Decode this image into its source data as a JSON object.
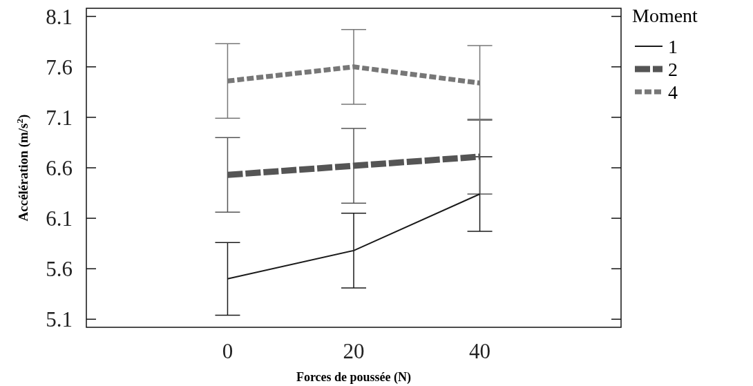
{
  "chart_data": {
    "type": "line",
    "xlabel": "Forces de poussée (N)",
    "ylabel": "Accélération (m/s$^{2}$)",
    "legend_title": "Moment",
    "legend": "top right",
    "grid": false,
    "marker": "none",
    "x": [
      0,
      20,
      40
    ],
    "xlim": [
      -22.4,
      62.4
    ],
    "xticks": [
      0,
      20,
      40
    ],
    "ylim": [
      5.02,
      8.18
    ],
    "yticks": [
      5.1,
      5.6,
      6.1,
      6.6,
      7.1,
      7.6,
      8.1
    ],
    "series": [
      {
        "name": "1",
        "color": "#1a1a1a",
        "line_style": "solid",
        "values": [
          5.5,
          5.78,
          6.34
        ],
        "errors": [
          0.36,
          0.37,
          0.37
        ]
      },
      {
        "name": "2",
        "color": "#555555",
        "line_style": "dashed",
        "values": [
          6.53,
          6.62,
          6.71
        ],
        "errors": [
          0.37,
          0.37,
          0.37
        ]
      },
      {
        "name": "4",
        "color": "#777777",
        "line_style": "dotted",
        "values": [
          7.46,
          7.6,
          7.44
        ],
        "errors": [
          0.37,
          0.37,
          0.37
        ]
      }
    ]
  }
}
